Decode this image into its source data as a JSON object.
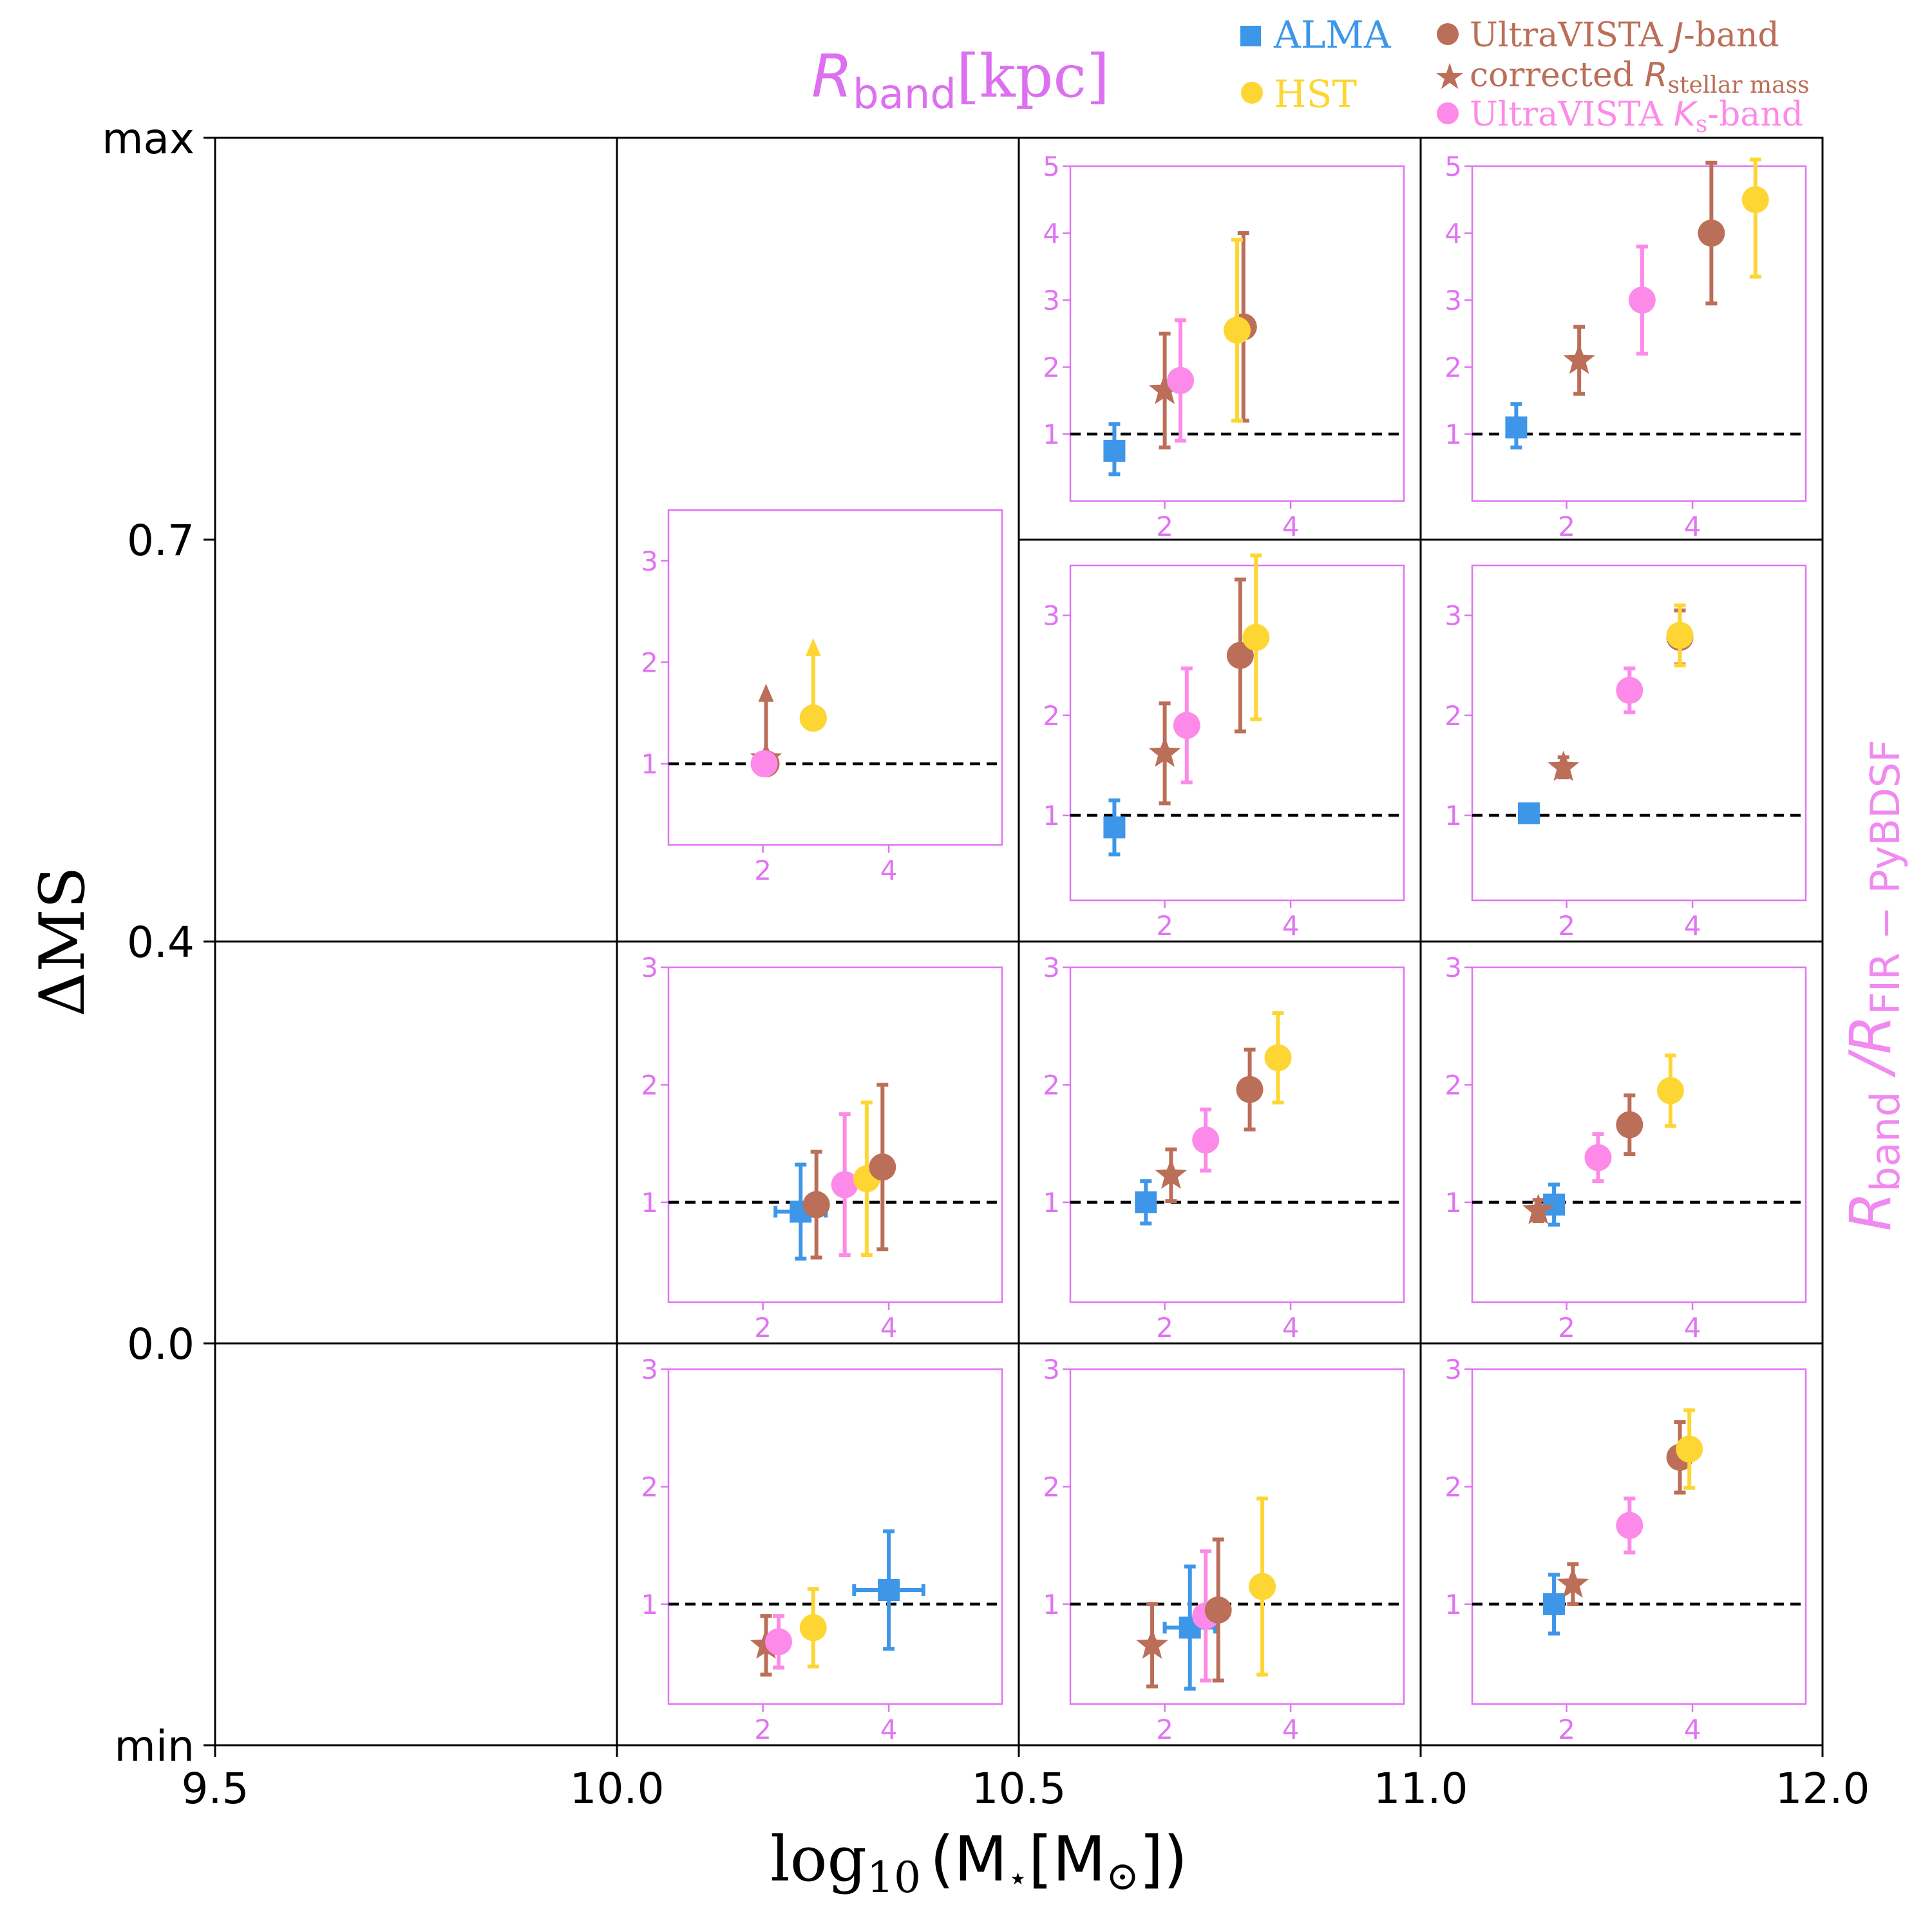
{
  "chart_data": {
    "type": "scatter",
    "title_prefix": "R",
    "title_sub": "band",
    "title_suffix": "[kpc]",
    "xlabel_log": "log",
    "xlabel_log_sub": "10",
    "xlabel_rest": "(M",
    "xlabel_star": "⋆",
    "xlabel_bracket": "[M",
    "xlabel_sun": "⊙",
    "xlabel_end": "])",
    "ylabel": "ΔMS",
    "right_label_R1": "R",
    "right_label_sub1": "band",
    "right_label_slash": " /R",
    "right_label_sub2": "FIR − PyBDSF",
    "x_ticks": [
      "9.5",
      "10.0",
      "10.5",
      "11.0",
      "12.0"
    ],
    "y_ticks": [
      "max",
      "0.7",
      "0.4",
      "0.0",
      "min"
    ],
    "inset_x_ticks": [
      "2",
      "4"
    ],
    "legend": [
      {
        "label": "ALMA",
        "marker": "square",
        "color": "#3e96e8"
      },
      {
        "label": "HST",
        "marker": "circle",
        "color": "#fdd634"
      },
      {
        "label": "UltraVISTA J-band",
        "label_main": "UltraVISTA ",
        "label_ital": "J",
        "label_end": "-band",
        "marker": "circle",
        "color": "#bb6e58"
      },
      {
        "label": "corrected R_stellar mass",
        "label_main": "corrected ",
        "label_ital": "R",
        "label_sub": "stellar mass",
        "marker": "star",
        "color": "#bb6e58"
      },
      {
        "label": "UltraVISTA Ks-band",
        "label_main": "UltraVISTA ",
        "label_ital": "K",
        "label_sub": "s",
        "label_end": "-band",
        "marker": "circle",
        "color": "#fd8ae8"
      }
    ],
    "colors": {
      "ALMA": "#3e96e8",
      "HST": "#fdd634",
      "J": "#bb6e58",
      "star": "#bb6e58",
      "Ks": "#fd8ae8",
      "inset": "#e074f2",
      "title": "#dc70f0"
    },
    "panels": [
      {
        "col": 1,
        "row": 1,
        "box": "small",
        "ylim": [
          0.2,
          3.5
        ],
        "yticks": [
          1,
          2,
          3
        ],
        "points": [
          {
            "s": "J",
            "x": 2.05,
            "y": 1.0,
            "yl": 0,
            "yh": 0,
            "up": 0.75
          },
          {
            "s": "star",
            "x": 2.05,
            "y": 1.05,
            "yl": 0,
            "yh": 0
          },
          {
            "s": "Ks",
            "x": 2.02,
            "y": 1.0,
            "yl": 0,
            "yh": 0
          },
          {
            "s": "J",
            "x": 2.8,
            "y": 1.45,
            "yl": 0,
            "yh": 0
          },
          {
            "s": "HST",
            "x": 2.8,
            "y": 1.45,
            "yl": 0,
            "yh": 0,
            "up": 0.75
          }
        ]
      },
      {
        "col": 2,
        "row": 0,
        "box": "top",
        "ylim": [
          0.0,
          5.0
        ],
        "yticks": [
          1,
          2,
          3,
          4,
          5
        ],
        "points": [
          {
            "s": "ALMA",
            "x": 1.2,
            "y": 0.75,
            "yl": 0.35,
            "yh": 0.4
          },
          {
            "s": "star",
            "x": 2.0,
            "y": 1.65,
            "yl": 0.85,
            "yh": 0.85
          },
          {
            "s": "Ks",
            "x": 2.25,
            "y": 1.8,
            "yl": 0.9,
            "yh": 0.9
          },
          {
            "s": "J",
            "x": 3.25,
            "y": 2.6,
            "yl": 1.4,
            "yh": 1.4
          },
          {
            "s": "HST",
            "x": 3.15,
            "y": 2.55,
            "yl": 1.35,
            "yh": 1.35
          }
        ]
      },
      {
        "col": 3,
        "row": 0,
        "box": "top",
        "ylim": [
          0.0,
          5.0
        ],
        "yticks": [
          1,
          2,
          3,
          4,
          5
        ],
        "points": [
          {
            "s": "ALMA",
            "x": 1.2,
            "y": 1.1,
            "yl": 0.3,
            "yh": 0.35
          },
          {
            "s": "star",
            "x": 2.2,
            "y": 2.1,
            "yl": 0.5,
            "yh": 0.5
          },
          {
            "s": "Ks",
            "x": 3.2,
            "y": 3.0,
            "yl": 0.8,
            "yh": 0.8
          },
          {
            "s": "J",
            "x": 4.3,
            "y": 4.0,
            "yl": 1.05,
            "yh": 1.05
          },
          {
            "s": "HST",
            "x": 5.0,
            "y": 4.5,
            "yl": 1.15,
            "yh": 0.6
          }
        ]
      },
      {
        "col": 2,
        "row": 1,
        "box": "full",
        "ylim": [
          0.15,
          3.5
        ],
        "yticks": [
          1,
          2,
          3
        ],
        "points": [
          {
            "s": "ALMA",
            "x": 1.2,
            "y": 0.88,
            "yl": 0.27,
            "yh": 0.27
          },
          {
            "s": "star",
            "x": 2.0,
            "y": 1.62,
            "yl": 0.5,
            "yh": 0.5
          },
          {
            "s": "Ks",
            "x": 2.35,
            "y": 1.9,
            "yl": 0.57,
            "yh": 0.57
          },
          {
            "s": "J",
            "x": 3.2,
            "y": 2.6,
            "yl": 0.76,
            "yh": 0.76
          },
          {
            "s": "HST",
            "x": 3.45,
            "y": 2.78,
            "yl": 0.82,
            "yh": 0.82
          }
        ]
      },
      {
        "col": 3,
        "row": 1,
        "box": "full",
        "ylim": [
          0.15,
          3.5
        ],
        "yticks": [
          1,
          2,
          3
        ],
        "points": [
          {
            "s": "ALMA",
            "x": 1.4,
            "y": 1.02,
            "yl": 0.06,
            "yh": 0.06
          },
          {
            "s": "star",
            "x": 1.95,
            "y": 1.48,
            "yl": 0.1,
            "yh": 0.1
          },
          {
            "s": "Ks",
            "x": 3.0,
            "y": 2.25,
            "yl": 0.22,
            "yh": 0.22
          },
          {
            "s": "J",
            "x": 3.8,
            "y": 2.78,
            "yl": 0.27,
            "yh": 0.27
          },
          {
            "s": "HST",
            "x": 3.8,
            "y": 2.8,
            "yl": 0.3,
            "yh": 0.3
          }
        ]
      },
      {
        "col": 1,
        "row": 2,
        "box": "full",
        "ylim": [
          0.15,
          3.0
        ],
        "yticks": [
          1,
          2,
          3
        ],
        "points": [
          {
            "s": "ALMA",
            "x": 2.6,
            "y": 0.92,
            "yl": 0.4,
            "yh": 0.4,
            "xe": 0.4
          },
          {
            "s": "J",
            "x": 2.85,
            "y": 0.98,
            "yl": 0.45,
            "yh": 0.45
          },
          {
            "s": "Ks",
            "x": 3.3,
            "y": 1.15,
            "yl": 0.6,
            "yh": 0.6
          },
          {
            "s": "HST",
            "x": 3.65,
            "y": 1.2,
            "yl": 0.65,
            "yh": 0.65
          },
          {
            "s": "J",
            "x": 3.9,
            "y": 1.3,
            "yl": 0.7,
            "yh": 0.7
          }
        ]
      },
      {
        "col": 2,
        "row": 2,
        "box": "full",
        "ylim": [
          0.15,
          3.0
        ],
        "yticks": [
          1,
          2,
          3
        ],
        "points": [
          {
            "s": "ALMA",
            "x": 1.7,
            "y": 1.0,
            "yl": 0.18,
            "yh": 0.18
          },
          {
            "s": "star",
            "x": 2.1,
            "y": 1.23,
            "yl": 0.22,
            "yh": 0.22
          },
          {
            "s": "Ks",
            "x": 2.65,
            "y": 1.53,
            "yl": 0.26,
            "yh": 0.26
          },
          {
            "s": "J",
            "x": 3.35,
            "y": 1.96,
            "yl": 0.34,
            "yh": 0.34
          },
          {
            "s": "HST",
            "x": 3.8,
            "y": 2.23,
            "yl": 0.38,
            "yh": 0.38
          }
        ]
      },
      {
        "col": 3,
        "row": 2,
        "box": "full",
        "ylim": [
          0.15,
          3.0
        ],
        "yticks": [
          1,
          2,
          3
        ],
        "points": [
          {
            "s": "ALMA",
            "x": 1.8,
            "y": 0.98,
            "yl": 0.17,
            "yh": 0.17
          },
          {
            "s": "star",
            "x": 1.55,
            "y": 0.93,
            "yl": 0.09,
            "yh": 0.09
          },
          {
            "s": "Ks",
            "x": 2.5,
            "y": 1.38,
            "yl": 0.2,
            "yh": 0.2
          },
          {
            "s": "J",
            "x": 3.0,
            "y": 1.66,
            "yl": 0.25,
            "yh": 0.25
          },
          {
            "s": "HST",
            "x": 3.65,
            "y": 1.95,
            "yl": 0.3,
            "yh": 0.3
          }
        ]
      },
      {
        "col": 1,
        "row": 3,
        "box": "full",
        "ylim": [
          0.15,
          3.0
        ],
        "yticks": [
          1,
          2,
          3
        ],
        "points": [
          {
            "s": "star",
            "x": 2.05,
            "y": 0.65,
            "yl": 0.25,
            "yh": 0.25
          },
          {
            "s": "Ks",
            "x": 2.25,
            "y": 0.68,
            "yl": 0.22,
            "yh": 0.22
          },
          {
            "s": "HST",
            "x": 2.8,
            "y": 0.8,
            "yl": 0.33,
            "yh": 0.33
          },
          {
            "s": "ALMA",
            "x": 4.0,
            "y": 1.12,
            "yl": 0.5,
            "yh": 0.5,
            "xe": 0.55
          }
        ]
      },
      {
        "col": 2,
        "row": 3,
        "box": "full",
        "ylim": [
          0.15,
          3.0
        ],
        "yticks": [
          1,
          2,
          3
        ],
        "points": [
          {
            "s": "star",
            "x": 1.8,
            "y": 0.65,
            "yl": 0.35,
            "yh": 0.35
          },
          {
            "s": "ALMA",
            "x": 2.4,
            "y": 0.8,
            "yl": 0.52,
            "yh": 0.52,
            "xe": 0.4
          },
          {
            "s": "Ks",
            "x": 2.65,
            "y": 0.9,
            "yl": 0.55,
            "yh": 0.55
          },
          {
            "s": "J",
            "x": 2.85,
            "y": 0.95,
            "yl": 0.6,
            "yh": 0.6
          },
          {
            "s": "HST",
            "x": 3.55,
            "y": 1.15,
            "yl": 0.75,
            "yh": 0.75
          }
        ]
      },
      {
        "col": 3,
        "row": 3,
        "box": "full",
        "ylim": [
          0.15,
          3.0
        ],
        "yticks": [
          1,
          2,
          3
        ],
        "points": [
          {
            "s": "ALMA",
            "x": 1.8,
            "y": 1.0,
            "yl": 0.25,
            "yh": 0.25
          },
          {
            "s": "star",
            "x": 2.1,
            "y": 1.17,
            "yl": 0.17,
            "yh": 0.17
          },
          {
            "s": "Ks",
            "x": 3.0,
            "y": 1.67,
            "yl": 0.23,
            "yh": 0.23
          },
          {
            "s": "J",
            "x": 3.8,
            "y": 2.25,
            "yl": 0.3,
            "yh": 0.3
          },
          {
            "s": "HST",
            "x": 3.95,
            "y": 2.32,
            "yl": 0.33,
            "yh": 0.33
          }
        ]
      }
    ]
  }
}
